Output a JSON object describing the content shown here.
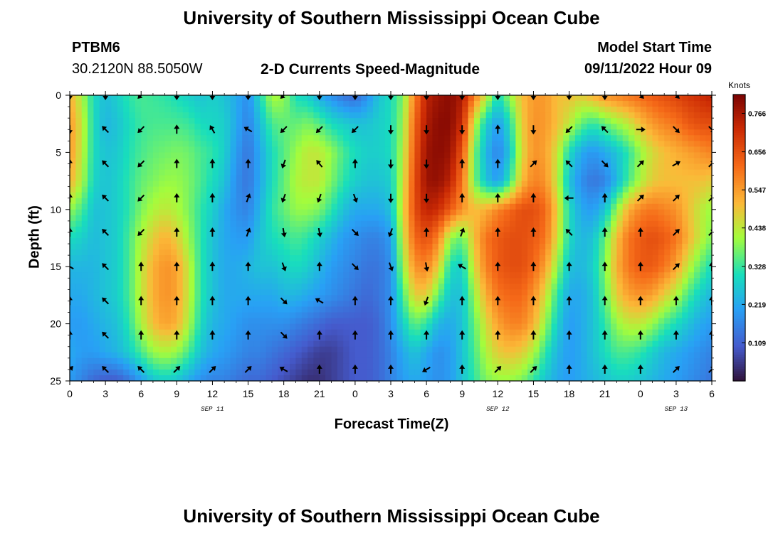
{
  "header": {
    "title": "University of Southern Mississippi Ocean Cube",
    "station": "PTBM6",
    "coords": "30.2120N  88.5050W",
    "subtitle": "2-D Currents Speed-Magnitude",
    "model_label": "Model Start Time",
    "model_time": "09/11/2022 Hour 09"
  },
  "footer": {
    "title": "University of Southern Mississippi Ocean Cube"
  },
  "chart_data": {
    "type": "heatmap",
    "title": "2-D Currents Speed-Magnitude",
    "xlabel": "Forecast Time(Z)",
    "ylabel": "Depth (ft)",
    "x_ticks": [
      "0",
      "3",
      "6",
      "9",
      "12",
      "15",
      "18",
      "21",
      "0",
      "3",
      "6",
      "9",
      "12",
      "15",
      "18",
      "21",
      "0",
      "3",
      "6"
    ],
    "x_hours": [
      0,
      3,
      6,
      9,
      12,
      15,
      18,
      21,
      24,
      27,
      30,
      33,
      36,
      39,
      42,
      45,
      48,
      51,
      54
    ],
    "x_range": [
      0,
      54
    ],
    "day_labels": [
      {
        "text": "SEP 11",
        "hour": 12
      },
      {
        "text": "SEP 12",
        "hour": 36
      },
      {
        "text": "SEP 13",
        "hour": 51
      }
    ],
    "y_ticks": [
      "0",
      "5",
      "10",
      "15",
      "20",
      "25"
    ],
    "y_values": [
      0,
      5,
      10,
      15,
      20,
      25
    ],
    "y_range": [
      0,
      25
    ],
    "y_inverted": true,
    "colorbar": {
      "unit": "Knots",
      "labels": [
        "0.766",
        "0.656",
        "0.547",
        "0.438",
        "0.328",
        "0.219",
        "0.109"
      ],
      "values": [
        0.766,
        0.656,
        0.547,
        0.438,
        0.328,
        0.219,
        0.109
      ],
      "range": [
        0,
        0.82
      ]
    },
    "speed_grid": {
      "hours": [
        0,
        1,
        2,
        3,
        4,
        5,
        6,
        7,
        8,
        9,
        10,
        11,
        12,
        13,
        14,
        15,
        16,
        17,
        18,
        19,
        20,
        21,
        22,
        23,
        24,
        25,
        26,
        27,
        28,
        29,
        30,
        31,
        32,
        33,
        34,
        35,
        36,
        37,
        38,
        39,
        40,
        41,
        42,
        43,
        44,
        45,
        46,
        47,
        48,
        49,
        50,
        51,
        52,
        53,
        54
      ],
      "depths": [
        0,
        2.5,
        5,
        7.5,
        10,
        12.5,
        15,
        17.5,
        20,
        22.5,
        25
      ],
      "values": [
        [
          0.52,
          0.42,
          0.3,
          0.25,
          0.28,
          0.32,
          0.34,
          0.33,
          0.32,
          0.3,
          0.28,
          0.26,
          0.28,
          0.26,
          0.22,
          0.18,
          0.3,
          0.42,
          0.4,
          0.3,
          0.28,
          0.22,
          0.18,
          0.14,
          0.12,
          0.18,
          0.26,
          0.3,
          0.38,
          0.58,
          0.74,
          0.78,
          0.8,
          0.76,
          0.6,
          0.45,
          0.3,
          0.4,
          0.5,
          0.55,
          0.55,
          0.5,
          0.5,
          0.48,
          0.52,
          0.56,
          0.58,
          0.6,
          0.62,
          0.64,
          0.66,
          0.68,
          0.7,
          0.72,
          0.74
        ],
        [
          0.55,
          0.45,
          0.3,
          0.24,
          0.26,
          0.3,
          0.33,
          0.34,
          0.34,
          0.34,
          0.33,
          0.3,
          0.29,
          0.28,
          0.22,
          0.16,
          0.25,
          0.34,
          0.36,
          0.36,
          0.38,
          0.35,
          0.3,
          0.28,
          0.26,
          0.26,
          0.28,
          0.3,
          0.4,
          0.62,
          0.76,
          0.8,
          0.8,
          0.72,
          0.44,
          0.28,
          0.2,
          0.3,
          0.48,
          0.56,
          0.55,
          0.5,
          0.44,
          0.36,
          0.32,
          0.36,
          0.4,
          0.44,
          0.5,
          0.55,
          0.58,
          0.6,
          0.64,
          0.66,
          0.66
        ],
        [
          0.55,
          0.44,
          0.3,
          0.26,
          0.27,
          0.31,
          0.34,
          0.36,
          0.37,
          0.38,
          0.37,
          0.34,
          0.32,
          0.28,
          0.2,
          0.14,
          0.22,
          0.3,
          0.35,
          0.4,
          0.44,
          0.44,
          0.4,
          0.34,
          0.3,
          0.28,
          0.28,
          0.3,
          0.42,
          0.64,
          0.78,
          0.8,
          0.78,
          0.65,
          0.38,
          0.24,
          0.16,
          0.26,
          0.46,
          0.56,
          0.54,
          0.45,
          0.3,
          0.22,
          0.19,
          0.22,
          0.26,
          0.32,
          0.4,
          0.46,
          0.5,
          0.52,
          0.54,
          0.56,
          0.58
        ],
        [
          0.52,
          0.42,
          0.29,
          0.26,
          0.28,
          0.32,
          0.36,
          0.38,
          0.4,
          0.4,
          0.38,
          0.34,
          0.3,
          0.26,
          0.18,
          0.14,
          0.22,
          0.3,
          0.36,
          0.42,
          0.44,
          0.44,
          0.38,
          0.32,
          0.28,
          0.26,
          0.26,
          0.28,
          0.44,
          0.66,
          0.78,
          0.79,
          0.74,
          0.6,
          0.38,
          0.26,
          0.2,
          0.32,
          0.5,
          0.58,
          0.56,
          0.44,
          0.26,
          0.18,
          0.14,
          0.16,
          0.24,
          0.34,
          0.42,
          0.48,
          0.5,
          0.5,
          0.5,
          0.5,
          0.48
        ],
        [
          0.4,
          0.34,
          0.26,
          0.26,
          0.28,
          0.32,
          0.38,
          0.42,
          0.44,
          0.42,
          0.38,
          0.32,
          0.28,
          0.22,
          0.18,
          0.16,
          0.24,
          0.32,
          0.36,
          0.4,
          0.4,
          0.38,
          0.32,
          0.26,
          0.22,
          0.22,
          0.22,
          0.26,
          0.46,
          0.66,
          0.74,
          0.72,
          0.64,
          0.56,
          0.5,
          0.52,
          0.58,
          0.62,
          0.66,
          0.66,
          0.62,
          0.48,
          0.3,
          0.22,
          0.2,
          0.26,
          0.4,
          0.52,
          0.58,
          0.6,
          0.58,
          0.56,
          0.5,
          0.44,
          0.4
        ],
        [
          0.3,
          0.28,
          0.25,
          0.26,
          0.28,
          0.34,
          0.42,
          0.48,
          0.52,
          0.48,
          0.4,
          0.32,
          0.26,
          0.22,
          0.2,
          0.2,
          0.26,
          0.3,
          0.32,
          0.34,
          0.32,
          0.28,
          0.24,
          0.2,
          0.18,
          0.16,
          0.16,
          0.2,
          0.44,
          0.62,
          0.66,
          0.58,
          0.4,
          0.36,
          0.5,
          0.6,
          0.64,
          0.66,
          0.66,
          0.64,
          0.6,
          0.46,
          0.3,
          0.24,
          0.26,
          0.36,
          0.5,
          0.6,
          0.64,
          0.66,
          0.64,
          0.6,
          0.52,
          0.44,
          0.38
        ],
        [
          0.24,
          0.24,
          0.24,
          0.26,
          0.28,
          0.34,
          0.44,
          0.52,
          0.56,
          0.54,
          0.44,
          0.32,
          0.26,
          0.22,
          0.22,
          0.24,
          0.26,
          0.26,
          0.28,
          0.3,
          0.28,
          0.24,
          0.2,
          0.18,
          0.16,
          0.14,
          0.14,
          0.18,
          0.4,
          0.56,
          0.58,
          0.48,
          0.3,
          0.28,
          0.46,
          0.58,
          0.64,
          0.66,
          0.66,
          0.62,
          0.54,
          0.4,
          0.26,
          0.24,
          0.28,
          0.38,
          0.52,
          0.6,
          0.64,
          0.64,
          0.6,
          0.54,
          0.44,
          0.36,
          0.3
        ],
        [
          0.22,
          0.22,
          0.24,
          0.26,
          0.28,
          0.34,
          0.44,
          0.52,
          0.56,
          0.54,
          0.44,
          0.32,
          0.26,
          0.22,
          0.22,
          0.22,
          0.22,
          0.22,
          0.24,
          0.24,
          0.22,
          0.2,
          0.18,
          0.16,
          0.14,
          0.12,
          0.14,
          0.18,
          0.34,
          0.48,
          0.48,
          0.36,
          0.26,
          0.26,
          0.4,
          0.52,
          0.6,
          0.62,
          0.62,
          0.56,
          0.46,
          0.32,
          0.22,
          0.22,
          0.26,
          0.36,
          0.48,
          0.54,
          0.56,
          0.54,
          0.48,
          0.42,
          0.34,
          0.28,
          0.24
        ],
        [
          0.2,
          0.2,
          0.22,
          0.24,
          0.26,
          0.32,
          0.42,
          0.5,
          0.54,
          0.52,
          0.42,
          0.3,
          0.24,
          0.22,
          0.2,
          0.18,
          0.18,
          0.18,
          0.18,
          0.16,
          0.14,
          0.12,
          0.1,
          0.1,
          0.1,
          0.1,
          0.12,
          0.18,
          0.28,
          0.36,
          0.32,
          0.24,
          0.22,
          0.26,
          0.36,
          0.46,
          0.54,
          0.58,
          0.58,
          0.52,
          0.4,
          0.28,
          0.2,
          0.22,
          0.26,
          0.32,
          0.4,
          0.44,
          0.44,
          0.4,
          0.34,
          0.3,
          0.26,
          0.22,
          0.2
        ],
        [
          0.22,
          0.2,
          0.2,
          0.22,
          0.24,
          0.28,
          0.34,
          0.4,
          0.42,
          0.4,
          0.34,
          0.26,
          0.22,
          0.2,
          0.18,
          0.16,
          0.16,
          0.14,
          0.12,
          0.1,
          0.08,
          0.06,
          0.06,
          0.08,
          0.1,
          0.1,
          0.12,
          0.16,
          0.22,
          0.26,
          0.22,
          0.18,
          0.2,
          0.26,
          0.34,
          0.42,
          0.48,
          0.5,
          0.48,
          0.42,
          0.32,
          0.24,
          0.2,
          0.22,
          0.26,
          0.3,
          0.34,
          0.34,
          0.32,
          0.28,
          0.24,
          0.22,
          0.2,
          0.18,
          0.16
        ],
        [
          0.2,
          0.16,
          0.12,
          0.1,
          0.1,
          0.14,
          0.2,
          0.26,
          0.28,
          0.26,
          0.22,
          0.18,
          0.16,
          0.16,
          0.14,
          0.12,
          0.12,
          0.1,
          0.08,
          0.06,
          0.04,
          0.04,
          0.06,
          0.08,
          0.1,
          0.1,
          0.12,
          0.16,
          0.2,
          0.22,
          0.2,
          0.18,
          0.2,
          0.26,
          0.32,
          0.38,
          0.4,
          0.4,
          0.38,
          0.32,
          0.26,
          0.22,
          0.2,
          0.22,
          0.24,
          0.26,
          0.28,
          0.28,
          0.26,
          0.24,
          0.22,
          0.2,
          0.18,
          0.16,
          0.14
        ]
      ]
    },
    "vectors": {
      "hours": [
        0,
        3,
        6,
        9,
        12,
        15,
        18,
        21,
        24,
        27,
        30,
        33,
        36,
        39,
        42,
        45,
        48,
        51,
        54
      ],
      "depths": [
        0,
        3,
        6,
        9,
        12,
        15,
        18,
        21,
        24
      ],
      "directions_deg": [
        [
          180,
          180,
          225,
          180,
          180,
          180,
          225,
          180,
          180,
          180,
          180,
          180,
          180,
          180,
          180,
          180,
          135,
          135,
          135
        ],
        [
          180,
          315,
          225,
          0,
          330,
          300,
          225,
          225,
          225,
          180,
          180,
          180,
          0,
          180,
          225,
          315,
          90,
          135,
          135
        ],
        [
          0,
          315,
          225,
          0,
          0,
          0,
          200,
          320,
          0,
          180,
          180,
          0,
          0,
          45,
          315,
          135,
          45,
          60,
          45
        ],
        [
          0,
          315,
          225,
          0,
          0,
          20,
          200,
          200,
          160,
          180,
          180,
          0,
          0,
          0,
          270,
          0,
          45,
          45,
          45
        ],
        [
          0,
          315,
          225,
          0,
          0,
          20,
          170,
          170,
          135,
          200,
          0,
          20,
          0,
          0,
          315,
          0,
          0,
          45,
          45
        ],
        [
          300,
          315,
          0,
          0,
          0,
          0,
          160,
          0,
          135,
          160,
          170,
          300,
          0,
          0,
          0,
          0,
          0,
          45,
          0
        ],
        [
          0,
          315,
          0,
          0,
          0,
          0,
          135,
          300,
          0,
          0,
          200,
          0,
          0,
          0,
          0,
          0,
          0,
          0,
          0
        ],
        [
          0,
          315,
          0,
          0,
          0,
          0,
          135,
          0,
          0,
          0,
          0,
          0,
          0,
          0,
          0,
          0,
          0,
          0,
          0
        ],
        [
          45,
          315,
          315,
          45,
          45,
          45,
          300,
          0,
          0,
          0,
          240,
          0,
          45,
          45,
          0,
          0,
          0,
          45,
          45
        ]
      ]
    }
  }
}
